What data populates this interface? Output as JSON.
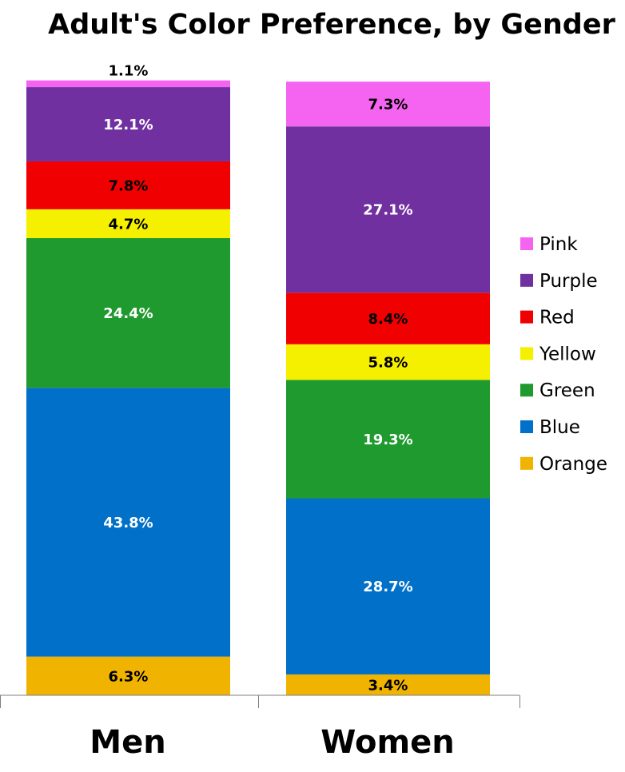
{
  "chart_data": {
    "type": "bar",
    "stacked": true,
    "title": "Adult's Color Preference, by Gender",
    "xlabel": "",
    "ylabel": "",
    "ylim": [
      0,
      100
    ],
    "grid": false,
    "legend_position": "right",
    "categories": [
      "Men",
      "Women"
    ],
    "series": [
      {
        "name": "Orange",
        "color": "#f0b400",
        "label_color": "#000000",
        "values": [
          6.3,
          3.4
        ],
        "labels": [
          "6.3%",
          "3.4%"
        ]
      },
      {
        "name": "Blue",
        "color": "#0070c8",
        "label_color": "#ffffff",
        "values": [
          43.8,
          28.7
        ],
        "labels": [
          "43.8%",
          "28.7%"
        ]
      },
      {
        "name": "Green",
        "color": "#1f9a2e",
        "label_color": "#ffffff",
        "values": [
          24.4,
          19.3
        ],
        "labels": [
          "24.4%",
          "19.3%"
        ]
      },
      {
        "name": "Yellow",
        "color": "#f5f000",
        "label_color": "#000000",
        "values": [
          4.7,
          5.8
        ],
        "labels": [
          "4.7%",
          "5.8%"
        ]
      },
      {
        "name": "Red",
        "color": "#f00000",
        "label_color": "#000000",
        "values": [
          7.8,
          8.4
        ],
        "labels": [
          "7.8%",
          "8.4%"
        ]
      },
      {
        "name": "Purple",
        "color": "#7030a0",
        "label_color": "#ffffff",
        "values": [
          12.1,
          27.1
        ],
        "labels": [
          "12.1%",
          "27.1%"
        ]
      },
      {
        "name": "Pink",
        "color": "#f564f0",
        "label_color": "#000000",
        "values": [
          1.1,
          7.3
        ],
        "labels": [
          "1.1%",
          "7.3%"
        ]
      }
    ],
    "legend_order": [
      "Pink",
      "Purple",
      "Red",
      "Yellow",
      "Green",
      "Blue",
      "Orange"
    ]
  }
}
